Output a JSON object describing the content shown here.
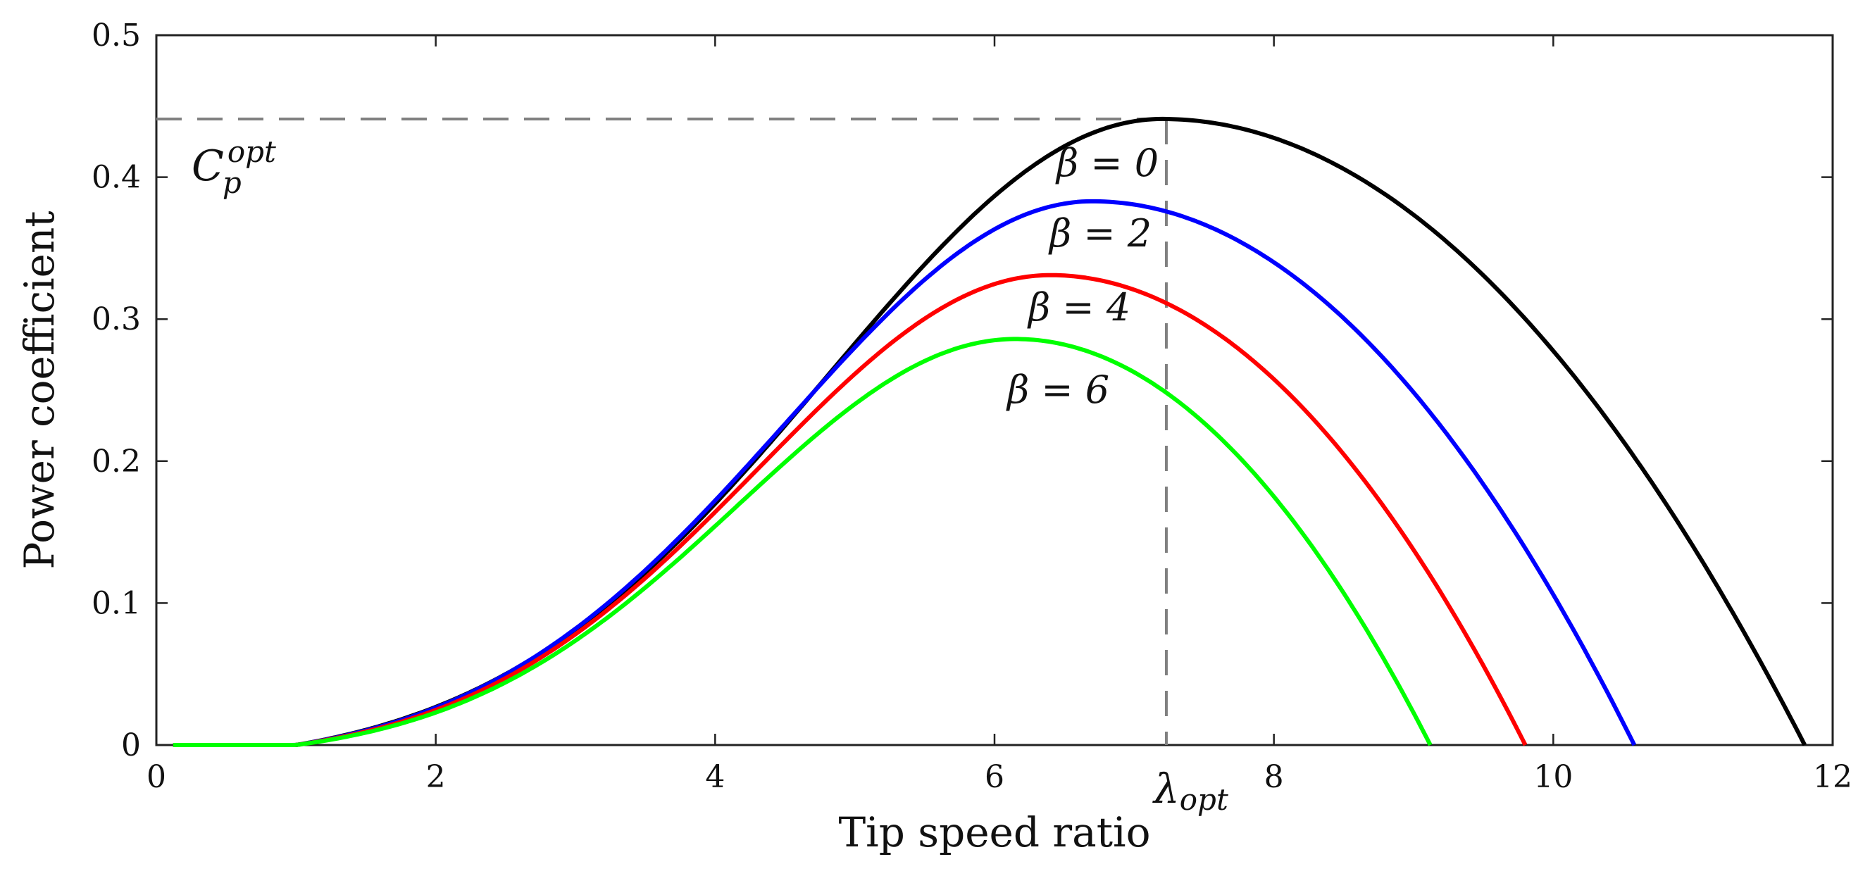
{
  "chart_data": {
    "type": "line",
    "title": "",
    "xlabel": "Tip speed ratio",
    "ylabel": "Power coefficient",
    "xlim": [
      0,
      12
    ],
    "ylim": [
      0,
      0.5
    ],
    "xticks": [
      0,
      2,
      4,
      6,
      8,
      10,
      12
    ],
    "xtick_labels": [
      "0",
      "2",
      "4",
      "6",
      "8",
      "10",
      "12"
    ],
    "yticks": [
      0,
      0.1,
      0.2,
      0.3,
      0.4,
      0.5
    ],
    "ytick_labels": [
      "0",
      "0.1",
      "0.2",
      "0.3",
      "0.4",
      "0.5"
    ],
    "grid": false,
    "series": [
      {
        "name": "β = 0",
        "color": "#000000",
        "peak_x": 7.2,
        "peak_y": 0.441,
        "end_x": 11.8
      },
      {
        "name": "β = 2",
        "color": "#0000ff",
        "peak_x": 6.7,
        "peak_y": 0.383,
        "end_x": 10.58
      },
      {
        "name": "β = 4",
        "color": "#ff0000",
        "peak_x": 6.4,
        "peak_y": 0.331,
        "end_x": 9.8
      },
      {
        "name": "β = 6",
        "color": "#00ff00",
        "peak_x": 6.15,
        "peak_y": 0.286,
        "end_x": 9.12
      }
    ],
    "series_x_start": 0.12,
    "series_x_onset": 1.0,
    "reference": {
      "x": 7.23,
      "y": 0.441,
      "line_color": "#808080",
      "x_label_main": "λ",
      "x_label_sub": "opt",
      "y_label_main": "C",
      "y_label_sub": "p",
      "y_label_sup": "opt"
    }
  }
}
